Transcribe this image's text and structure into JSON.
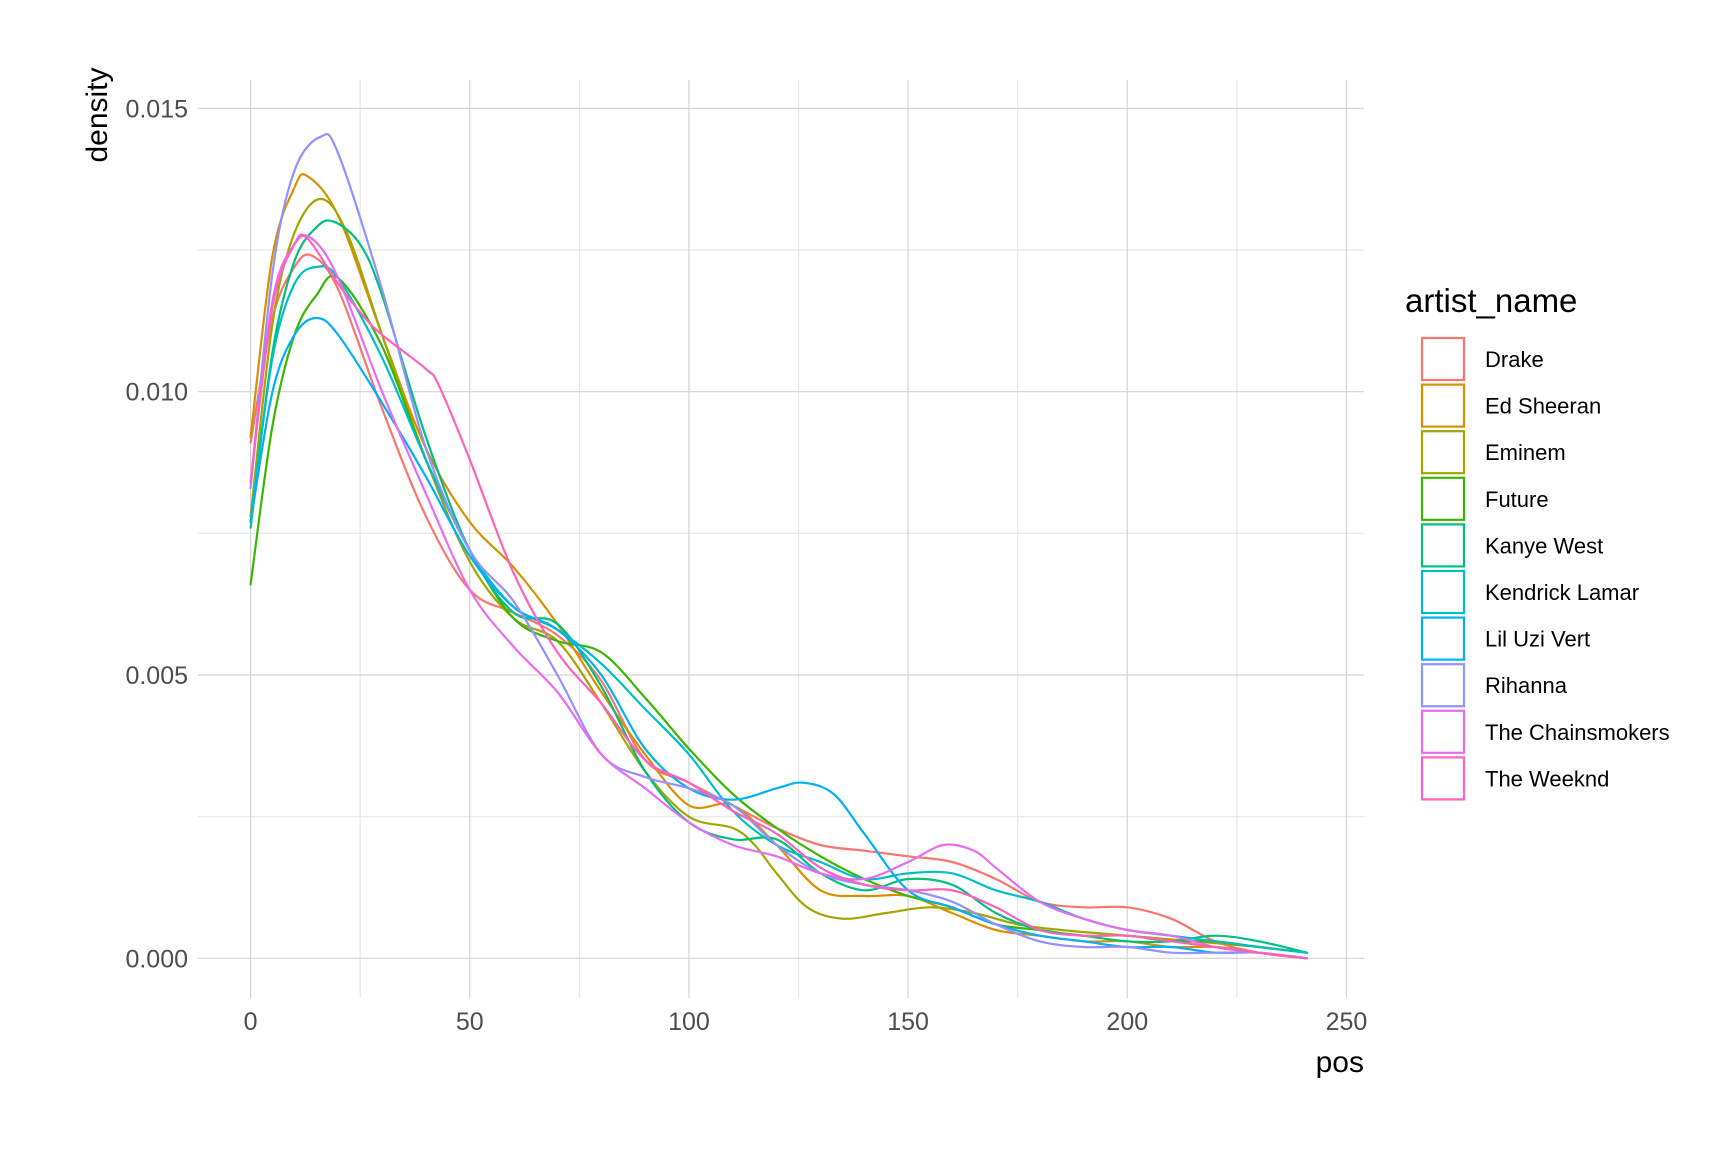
{
  "chart_data": {
    "type": "line",
    "xlabel": "pos",
    "ylabel": "density",
    "xlim": [
      -12,
      254
    ],
    "ylim": [
      -0.0007,
      0.0155
    ],
    "x_ticks": [
      0,
      50,
      100,
      150,
      200,
      250
    ],
    "x_tick_labels": [
      "0",
      "50",
      "100",
      "150",
      "200",
      "250"
    ],
    "x_minor_ticks": [
      25,
      75,
      125,
      175,
      225
    ],
    "y_ticks": [
      0.0,
      0.005,
      0.01,
      0.015
    ],
    "y_tick_labels": [
      "0.000",
      "0.005",
      "0.010",
      "0.015"
    ],
    "y_minor_ticks": [
      0.0025,
      0.0075,
      0.0125
    ],
    "grid": true,
    "legend": {
      "title": "artist_name",
      "position": "right"
    },
    "series": [
      {
        "name": "Drake",
        "color": "#F8766D",
        "x": [
          0,
          5,
          10,
          14,
          20,
          30,
          40,
          50,
          60,
          70,
          80,
          90,
          100,
          110,
          120,
          130,
          140,
          150,
          160,
          170,
          180,
          190,
          200,
          210,
          220,
          230,
          241
        ],
        "y": [
          0.0091,
          0.0113,
          0.0122,
          0.0124,
          0.0118,
          0.0097,
          0.0078,
          0.0065,
          0.0061,
          0.0057,
          0.0049,
          0.0035,
          0.0031,
          0.0027,
          0.0023,
          0.002,
          0.0019,
          0.0018,
          0.0017,
          0.0014,
          0.001,
          0.0009,
          0.0009,
          0.0007,
          0.0003,
          0.0001,
          0.0
        ]
      },
      {
        "name": "Ed Sheeran",
        "color": "#D89000",
        "x": [
          0,
          5,
          10,
          13,
          20,
          30,
          40,
          50,
          60,
          70,
          80,
          90,
          100,
          110,
          120,
          130,
          140,
          150,
          160,
          170,
          180,
          190,
          200,
          210,
          220,
          230,
          241
        ],
        "y": [
          0.0092,
          0.0124,
          0.0136,
          0.0138,
          0.0131,
          0.011,
          0.009,
          0.0077,
          0.0069,
          0.0059,
          0.0047,
          0.0036,
          0.0027,
          0.0027,
          0.002,
          0.0012,
          0.0011,
          0.0011,
          0.0008,
          0.0005,
          0.0004,
          0.0003,
          0.0003,
          0.0002,
          0.0002,
          0.0001,
          0.0
        ]
      },
      {
        "name": "Eminem",
        "color": "#A3A500",
        "x": [
          0,
          5,
          10,
          16,
          22,
          30,
          40,
          50,
          60,
          70,
          80,
          90,
          100,
          110,
          115,
          120,
          127,
          135,
          145,
          155,
          165,
          175,
          185,
          200,
          215,
          230,
          241
        ],
        "y": [
          0.0078,
          0.0112,
          0.0128,
          0.0134,
          0.0128,
          0.011,
          0.0088,
          0.007,
          0.006,
          0.0056,
          0.0045,
          0.0033,
          0.0025,
          0.0023,
          0.002,
          0.0015,
          0.0009,
          0.0007,
          0.0008,
          0.0009,
          0.0008,
          0.0006,
          0.0005,
          0.0004,
          0.0003,
          0.0002,
          0.0001
        ]
      },
      {
        "name": "Future",
        "color": "#39B600",
        "x": [
          0,
          5,
          10,
          15,
          20,
          30,
          40,
          50,
          60,
          70,
          80,
          90,
          100,
          110,
          120,
          130,
          140,
          150,
          160,
          170,
          180,
          190,
          200,
          210,
          220,
          230,
          241
        ],
        "y": [
          0.0066,
          0.0094,
          0.011,
          0.0117,
          0.012,
          0.0108,
          0.0088,
          0.0072,
          0.006,
          0.0056,
          0.0054,
          0.0046,
          0.0037,
          0.0029,
          0.0023,
          0.0018,
          0.0014,
          0.0011,
          0.0009,
          0.0006,
          0.0005,
          0.0004,
          0.0004,
          0.0003,
          0.0003,
          0.0002,
          0.0001
        ]
      },
      {
        "name": "Kanye West",
        "color": "#00BF7D",
        "x": [
          0,
          5,
          10,
          15,
          19,
          25,
          30,
          40,
          50,
          60,
          70,
          80,
          90,
          100,
          110,
          120,
          130,
          140,
          150,
          160,
          170,
          180,
          190,
          200,
          210,
          220,
          230,
          241
        ],
        "y": [
          0.0076,
          0.0107,
          0.0123,
          0.0129,
          0.013,
          0.0126,
          0.0117,
          0.0092,
          0.0072,
          0.0061,
          0.0059,
          0.0048,
          0.0033,
          0.0024,
          0.0021,
          0.0021,
          0.0015,
          0.0012,
          0.0014,
          0.0013,
          0.0008,
          0.0005,
          0.0004,
          0.0003,
          0.0003,
          0.0004,
          0.0003,
          0.0001
        ]
      },
      {
        "name": "Kendrick Lamar",
        "color": "#00BFC4",
        "x": [
          0,
          5,
          10,
          15,
          20,
          30,
          40,
          50,
          60,
          70,
          80,
          90,
          100,
          110,
          120,
          130,
          140,
          150,
          160,
          170,
          180,
          190,
          200,
          210,
          220,
          230,
          241
        ],
        "y": [
          0.0077,
          0.0106,
          0.0119,
          0.0122,
          0.012,
          0.0106,
          0.0088,
          0.0072,
          0.0062,
          0.0058,
          0.0052,
          0.0044,
          0.0036,
          0.0026,
          0.002,
          0.0017,
          0.0014,
          0.0015,
          0.0015,
          0.0012,
          0.001,
          0.0007,
          0.0005,
          0.0004,
          0.0003,
          0.0002,
          0.0001
        ]
      },
      {
        "name": "Lil Uzi Vert",
        "color": "#00B0F6",
        "x": [
          0,
          5,
          10,
          15,
          20,
          30,
          40,
          50,
          60,
          70,
          80,
          90,
          100,
          110,
          120,
          126,
          133,
          140,
          150,
          160,
          170,
          180,
          190,
          200,
          210,
          220,
          230,
          241
        ],
        "y": [
          0.0077,
          0.01,
          0.011,
          0.0113,
          0.011,
          0.0098,
          0.0085,
          0.0071,
          0.0062,
          0.0058,
          0.005,
          0.0037,
          0.003,
          0.0028,
          0.003,
          0.0031,
          0.0029,
          0.0022,
          0.0012,
          0.0009,
          0.0006,
          0.0004,
          0.0003,
          0.0002,
          0.0002,
          0.0001,
          0.0001,
          0.0
        ]
      },
      {
        "name": "Rihanna",
        "color": "#9590FF",
        "x": [
          0,
          5,
          10,
          16,
          20,
          30,
          40,
          50,
          60,
          70,
          80,
          90,
          100,
          110,
          120,
          130,
          140,
          150,
          160,
          170,
          180,
          190,
          200,
          210,
          220,
          230,
          241
        ],
        "y": [
          0.0083,
          0.0121,
          0.0139,
          0.0145,
          0.0142,
          0.0118,
          0.009,
          0.0072,
          0.0063,
          0.005,
          0.0036,
          0.0032,
          0.003,
          0.0027,
          0.002,
          0.0015,
          0.0013,
          0.0012,
          0.001,
          0.0006,
          0.0003,
          0.0002,
          0.0002,
          0.0001,
          0.0001,
          0.0001,
          0.0
        ]
      },
      {
        "name": "The Chainsmokers",
        "color": "#E76BF3",
        "x": [
          0,
          5,
          10,
          14,
          20,
          30,
          40,
          50,
          60,
          70,
          80,
          90,
          100,
          110,
          120,
          130,
          140,
          150,
          158,
          165,
          170,
          180,
          190,
          200,
          210,
          220,
          230,
          241
        ],
        "y": [
          0.0084,
          0.0116,
          0.0126,
          0.0127,
          0.012,
          0.01,
          0.0082,
          0.0065,
          0.0055,
          0.0047,
          0.0036,
          0.003,
          0.0024,
          0.002,
          0.0018,
          0.0015,
          0.0014,
          0.0017,
          0.002,
          0.0019,
          0.0016,
          0.001,
          0.0007,
          0.0005,
          0.0004,
          0.0002,
          0.0001,
          0.0
        ]
      },
      {
        "name": "The Weeknd",
        "color": "#FF62BC",
        "x": [
          0,
          5,
          10,
          13,
          20,
          25,
          30,
          40,
          43,
          50,
          60,
          70,
          80,
          90,
          100,
          110,
          120,
          130,
          140,
          150,
          160,
          170,
          180,
          190,
          200,
          210,
          220,
          230,
          241
        ],
        "y": [
          0.0084,
          0.0115,
          0.0126,
          0.0127,
          0.0119,
          0.0114,
          0.011,
          0.0104,
          0.0101,
          0.0088,
          0.0068,
          0.0054,
          0.0045,
          0.0035,
          0.0031,
          0.0026,
          0.0022,
          0.0016,
          0.0013,
          0.0012,
          0.0012,
          0.0009,
          0.0005,
          0.0004,
          0.0004,
          0.0003,
          0.0002,
          0.0001,
          0.0
        ]
      }
    ]
  }
}
